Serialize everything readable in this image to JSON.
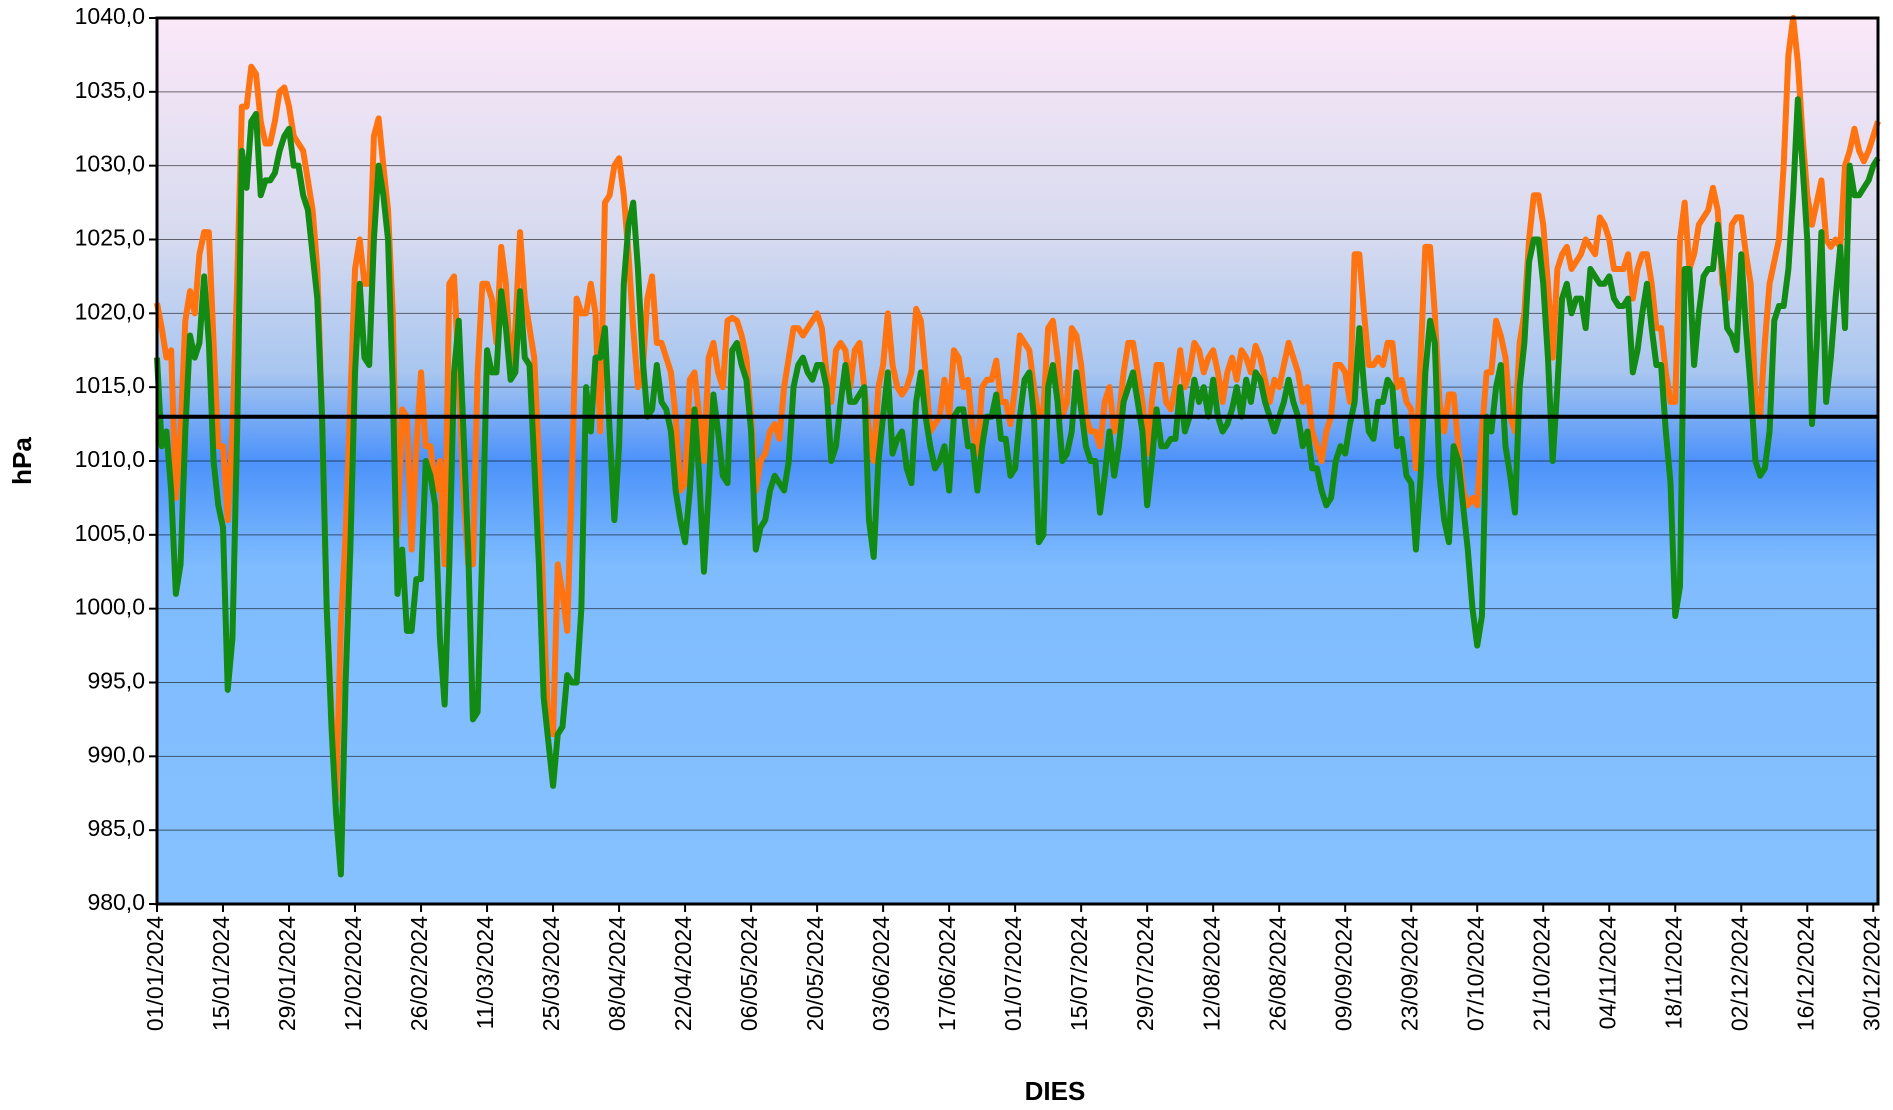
{
  "chart_data": {
    "type": "line",
    "x_label": "DIES",
    "y_label": "hPa",
    "ylim": [
      980,
      1040
    ],
    "yticks": [
      {
        "value": 980,
        "label": "980,0"
      },
      {
        "value": 985,
        "label": "985,0"
      },
      {
        "value": 990,
        "label": "990,0"
      },
      {
        "value": 995,
        "label": "995,0"
      },
      {
        "value": 1000,
        "label": "1000,0"
      },
      {
        "value": 1005,
        "label": "1005,0"
      },
      {
        "value": 1010,
        "label": "1010,0"
      },
      {
        "value": 1015,
        "label": "1015,0"
      },
      {
        "value": 1020,
        "label": "1020,0"
      },
      {
        "value": 1025,
        "label": "1025,0"
      },
      {
        "value": 1030,
        "label": "1030,0"
      },
      {
        "value": 1035,
        "label": "1035,0"
      },
      {
        "value": 1040,
        "label": "1040,0"
      }
    ],
    "grid": true,
    "reference_line": 1013,
    "categories": [
      "01/01/2024",
      null,
      null,
      null,
      null,
      null,
      null,
      null,
      null,
      null,
      null,
      null,
      null,
      null,
      "15/01/2024",
      null,
      null,
      null,
      null,
      null,
      null,
      null,
      null,
      null,
      null,
      null,
      null,
      null,
      "29/01/2024",
      null,
      null,
      null,
      null,
      null,
      null,
      null,
      null,
      null,
      null,
      null,
      null,
      null,
      "12/02/2024",
      null,
      null,
      null,
      null,
      null,
      null,
      null,
      null,
      null,
      null,
      null,
      null,
      null,
      "26/02/2024",
      null,
      null,
      null,
      null,
      null,
      null,
      null,
      null,
      null,
      null,
      null,
      null,
      null,
      "11/03/2024",
      null,
      null,
      null,
      null,
      null,
      null,
      null,
      null,
      null,
      null,
      null,
      null,
      null,
      "25/03/2024",
      null,
      null,
      null,
      null,
      null,
      null,
      null,
      null,
      null,
      null,
      null,
      null,
      null,
      "08/04/2024",
      null,
      null,
      null,
      null,
      null,
      null,
      null,
      null,
      null,
      null,
      null,
      null,
      null,
      "22/04/2024",
      null,
      null,
      null,
      null,
      null,
      null,
      null,
      null,
      null,
      null,
      null,
      null,
      null,
      "06/05/2024",
      null,
      null,
      null,
      null,
      null,
      null,
      null,
      null,
      null,
      null,
      null,
      null,
      null,
      "20/05/2024",
      null,
      null,
      null,
      null,
      null,
      null,
      null,
      null,
      null,
      null,
      null,
      null,
      null,
      "03/06/2024",
      null,
      null,
      null,
      null,
      null,
      null,
      null,
      null,
      null,
      null,
      null,
      null,
      null,
      "17/06/2024",
      null,
      null,
      null,
      null,
      null,
      null,
      null,
      null,
      null,
      null,
      null,
      null,
      null,
      "01/07/2024",
      null,
      null,
      null,
      null,
      null,
      null,
      null,
      null,
      null,
      null,
      null,
      null,
      null,
      "15/07/2024",
      null,
      null,
      null,
      null,
      null,
      null,
      null,
      null,
      null,
      null,
      null,
      null,
      null,
      "29/07/2024",
      null,
      null,
      null,
      null,
      null,
      null,
      null,
      null,
      null,
      null,
      null,
      null,
      null,
      "12/08/2024",
      null,
      null,
      null,
      null,
      null,
      null,
      null,
      null,
      null,
      null,
      null,
      null,
      null,
      "26/08/2024",
      null,
      null,
      null,
      null,
      null,
      null,
      null,
      null,
      null,
      null,
      null,
      null,
      null,
      "09/09/2024",
      null,
      null,
      null,
      null,
      null,
      null,
      null,
      null,
      null,
      null,
      null,
      null,
      null,
      "23/09/2024",
      null,
      null,
      null,
      null,
      null,
      null,
      null,
      null,
      null,
      null,
      null,
      null,
      null,
      "07/10/2024",
      null,
      null,
      null,
      null,
      null,
      null,
      null,
      null,
      null,
      null,
      null,
      null,
      null,
      "21/10/2024",
      null,
      null,
      null,
      null,
      null,
      null,
      null,
      null,
      null,
      null,
      null,
      null,
      null,
      "04/11/2024",
      null,
      null,
      null,
      null,
      null,
      null,
      null,
      null,
      null,
      null,
      null,
      null,
      null,
      "18/11/2024",
      null,
      null,
      null,
      null,
      null,
      null,
      null,
      null,
      null,
      null,
      null,
      null,
      null,
      "02/12/2024",
      null,
      null,
      null,
      null,
      null,
      null,
      null,
      null,
      null,
      null,
      null,
      null,
      null,
      "16/12/2024",
      null,
      null,
      null,
      null,
      null,
      null,
      null,
      null,
      null,
      null,
      null,
      null,
      null,
      "30/12/2024",
      null
    ],
    "series": [
      {
        "color": "#ff7310",
        "values": [
          1020.7,
          1019,
          1017,
          1017.5,
          1007.5,
          1012,
          1019.5,
          1021.5,
          1020,
          1024,
          1025.5,
          1025.5,
          1018,
          1011,
          1011,
          1006,
          1012,
          1022,
          1034,
          1034,
          1036.7,
          1036.2,
          1033,
          1031.5,
          1031.5,
          1033,
          1035,
          1035.3,
          1034,
          1032,
          1031.5,
          1031,
          1029,
          1027,
          1023,
          1013,
          1000,
          993,
          987,
          999,
          1005,
          1014,
          1023,
          1025,
          1022,
          1022,
          1032,
          1033.2,
          1030,
          1027,
          1020,
          1005,
          1013.5,
          1013,
          1004,
          1011,
          1016,
          1011,
          1011,
          1008,
          1010,
          1003,
          1022,
          1022.5,
          1016,
          1008,
          1003,
          1003,
          1016,
          1022,
          1022,
          1021,
          1018,
          1024.5,
          1022,
          1016,
          1019,
          1025.5,
          1021,
          1019,
          1017,
          1010,
          1000,
          992,
          991.5,
          1003,
          1001,
          998.5,
          1009,
          1021,
          1020,
          1020,
          1022,
          1020,
          1012,
          1027.5,
          1028,
          1030,
          1030.5,
          1028,
          1024,
          1019,
          1015,
          1016,
          1021,
          1022.5,
          1018,
          1018,
          1017,
          1016,
          1013,
          1008,
          1008.5,
          1015.5,
          1016,
          1013,
          1010,
          1017,
          1018,
          1016,
          1015,
          1019.5,
          1019.7,
          1019.5,
          1018.5,
          1017,
          1013,
          1008,
          1010,
          1010.5,
          1012,
          1012.5,
          1011.5,
          1015,
          1017,
          1019,
          1019,
          1018.5,
          1019,
          1019.5,
          1020,
          1019,
          1016,
          1014,
          1017.5,
          1018,
          1017.5,
          1015,
          1017.5,
          1018,
          1015,
          1012,
          1010,
          1015,
          1016.5,
          1020,
          1016.5,
          1015,
          1014.5,
          1015,
          1016,
          1020.3,
          1019.5,
          1016,
          1012,
          1012.5,
          1013,
          1015.5,
          1013,
          1017.5,
          1017,
          1015,
          1015.5,
          1012,
          1010.5,
          1015,
          1015.5,
          1015.5,
          1016.8,
          1014,
          1014,
          1012.5,
          1015,
          1018.5,
          1018,
          1017.5,
          1015,
          1013,
          1013.5,
          1019,
          1019.5,
          1017,
          1013,
          1014,
          1019,
          1018.5,
          1016.5,
          1013,
          1012,
          1012,
          1011,
          1014,
          1015,
          1012,
          1013,
          1016,
          1018,
          1018,
          1016,
          1014,
          1010.5,
          1014,
          1016.5,
          1016.5,
          1014,
          1013.5,
          1015,
          1017.5,
          1015,
          1016,
          1018,
          1017.5,
          1016,
          1017,
          1017.5,
          1016,
          1014,
          1016,
          1017,
          1015.5,
          1017.5,
          1017,
          1016,
          1017.8,
          1017,
          1015.5,
          1014,
          1015.5,
          1015,
          1016.5,
          1018,
          1017,
          1016,
          1014,
          1015,
          1012,
          1011,
          1010,
          1012,
          1013,
          1016.5,
          1016.5,
          1016,
          1014,
          1024,
          1024,
          1020,
          1016.5,
          1016.5,
          1017,
          1016.5,
          1018,
          1018,
          1015,
          1015.5,
          1014,
          1013.5,
          1009.5,
          1017,
          1024.5,
          1024.5,
          1020,
          1014,
          1012,
          1014.5,
          1014.5,
          1011,
          1008,
          1007,
          1007.5,
          1007,
          1012,
          1016,
          1016,
          1019.5,
          1018.5,
          1017,
          1013,
          1012,
          1018,
          1020,
          1025,
          1028,
          1028,
          1026,
          1022,
          1017,
          1023,
          1024,
          1024.5,
          1023,
          1023.5,
          1024,
          1025,
          1024.5,
          1024,
          1026.5,
          1026,
          1025,
          1023,
          1023,
          1023,
          1024,
          1021,
          1023,
          1024,
          1024,
          1022,
          1019,
          1019,
          1016,
          1014,
          1014,
          1025,
          1027.5,
          1023,
          1024,
          1026,
          1026.5,
          1027,
          1028.5,
          1027,
          1022,
          1021,
          1026,
          1026.5,
          1026.5,
          1024,
          1022,
          1014,
          1013,
          1018,
          1022,
          1023.5,
          1025,
          1030,
          1037.5,
          1040,
          1037,
          1032,
          1028,
          1026,
          1027.5,
          1029,
          1025,
          1024.5,
          1025,
          1024.5,
          1030,
          1031,
          1032.5,
          1031,
          1030.3,
          1031,
          1032,
          1033
        ]
      },
      {
        "color": "#138a13",
        "values": [
          1017,
          1011,
          1012,
          1008,
          1001,
          1003,
          1012,
          1018.5,
          1017,
          1018,
          1022.5,
          1018,
          1010,
          1007,
          1005.5,
          994.5,
          998,
          1012,
          1031,
          1028.5,
          1033,
          1033.5,
          1028,
          1029,
          1029,
          1029.5,
          1031,
          1032,
          1032.5,
          1030,
          1030,
          1028,
          1027,
          1024,
          1021,
          1013,
          1000,
          992,
          986,
          982,
          995,
          1004,
          1016,
          1022,
          1017,
          1016.5,
          1025,
          1030,
          1028,
          1025,
          1015,
          1001,
          1004,
          998.5,
          998.5,
          1002,
          1002,
          1010,
          1009,
          1007,
          998,
          993.5,
          1003,
          1016,
          1019.5,
          1012,
          1004,
          992.5,
          993,
          1004,
          1017.5,
          1016,
          1016,
          1021.5,
          1019,
          1015.5,
          1016,
          1021.5,
          1017,
          1016.5,
          1010,
          1003,
          994,
          991,
          988,
          991.5,
          992,
          995.5,
          995,
          995,
          1000,
          1015,
          1012,
          1017,
          1017,
          1019,
          1012,
          1006,
          1011,
          1022,
          1026,
          1027.5,
          1023,
          1017,
          1013,
          1013.5,
          1016.5,
          1014,
          1013.5,
          1012,
          1008,
          1006,
          1004.5,
          1008,
          1013.5,
          1009,
          1002.5,
          1008,
          1014.5,
          1012,
          1009,
          1008.5,
          1017.5,
          1018,
          1016.5,
          1015.5,
          1012,
          1004,
          1005.5,
          1006,
          1008,
          1009,
          1008.5,
          1008,
          1010,
          1015,
          1016.5,
          1017,
          1016,
          1015.5,
          1016.5,
          1016.5,
          1015,
          1010,
          1011,
          1014,
          1016.5,
          1014,
          1014,
          1014.5,
          1015,
          1006,
          1003.5,
          1010,
          1013,
          1016,
          1010.5,
          1011.5,
          1012,
          1009.5,
          1008.5,
          1014,
          1016,
          1013,
          1011,
          1009.5,
          1010,
          1011,
          1008,
          1013,
          1013.5,
          1013.5,
          1011,
          1011,
          1008,
          1011,
          1013,
          1013,
          1014.5,
          1011.5,
          1011.5,
          1009,
          1009.5,
          1013,
          1015.5,
          1016,
          1013,
          1004.5,
          1005,
          1015,
          1016.5,
          1014,
          1010,
          1010.5,
          1012,
          1016,
          1013.5,
          1011,
          1010,
          1010,
          1006.5,
          1009,
          1012,
          1009,
          1011,
          1014,
          1015,
          1016,
          1014,
          1012,
          1007,
          1010,
          1013.5,
          1011,
          1011,
          1011.5,
          1011.5,
          1015,
          1012,
          1013,
          1015.5,
          1014,
          1015,
          1013,
          1015.5,
          1013,
          1012,
          1012.5,
          1013.5,
          1015,
          1013,
          1015.5,
          1014,
          1016,
          1015.5,
          1014,
          1013,
          1012,
          1013,
          1014,
          1015.5,
          1014,
          1013,
          1011,
          1012,
          1009.5,
          1009.5,
          1008,
          1007,
          1007.5,
          1010,
          1011,
          1010.5,
          1012.5,
          1014,
          1019,
          1015,
          1012,
          1011.5,
          1014,
          1014,
          1015.5,
          1015,
          1011,
          1011.5,
          1009,
          1008.5,
          1004,
          1009,
          1016,
          1019.5,
          1018,
          1009,
          1006,
          1004.5,
          1011,
          1010,
          1007,
          1004,
          1000,
          997.5,
          999.5,
          1013,
          1012,
          1015,
          1016.5,
          1011,
          1009,
          1006.5,
          1015,
          1018,
          1023.5,
          1025,
          1025,
          1022,
          1017,
          1010,
          1015,
          1021,
          1022,
          1020,
          1021,
          1021,
          1019,
          1023,
          1022.5,
          1022,
          1022,
          1022.5,
          1021,
          1020.5,
          1020.5,
          1021,
          1016,
          1017.5,
          1020,
          1022,
          1019,
          1016.5,
          1016.5,
          1012,
          1008.5,
          999.5,
          1001.5,
          1023,
          1023,
          1016.5,
          1020,
          1022.5,
          1023,
          1023,
          1026,
          1023,
          1019,
          1018.5,
          1017.5,
          1024,
          1019,
          1015,
          1010,
          1009,
          1009.5,
          1012,
          1019.5,
          1020.5,
          1020.5,
          1023,
          1028,
          1034.5,
          1030,
          1025,
          1012.5,
          1018,
          1025.5,
          1014,
          1017,
          1021,
          1024.5,
          1019,
          1030,
          1028,
          1028,
          1028.5,
          1029,
          1030,
          1030.5
        ]
      }
    ]
  }
}
